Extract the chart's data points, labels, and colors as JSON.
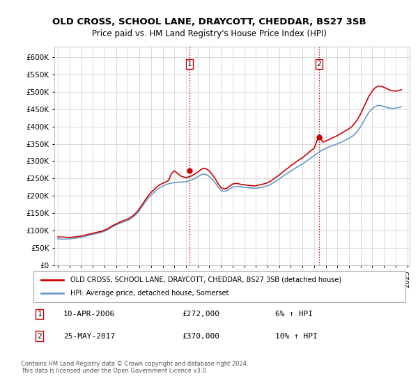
{
  "title": "OLD CROSS, SCHOOL LANE, DRAYCOTT, CHEDDAR, BS27 3SB",
  "subtitle": "Price paid vs. HM Land Registry's House Price Index (HPI)",
  "ylabel_values": [
    "£0",
    "£50K",
    "£100K",
    "£150K",
    "£200K",
    "£250K",
    "£300K",
    "£350K",
    "£400K",
    "£450K",
    "£500K",
    "£550K",
    "£600K"
  ],
  "ylim": [
    0,
    630000
  ],
  "yticks": [
    0,
    50000,
    100000,
    150000,
    200000,
    250000,
    300000,
    350000,
    400000,
    450000,
    500000,
    550000,
    600000
  ],
  "hpi_years": [
    1995.0,
    1995.25,
    1995.5,
    1995.75,
    1996.0,
    1996.25,
    1996.5,
    1996.75,
    1997.0,
    1997.25,
    1997.5,
    1997.75,
    1998.0,
    1998.25,
    1998.5,
    1998.75,
    1999.0,
    1999.25,
    1999.5,
    1999.75,
    2000.0,
    2000.25,
    2000.5,
    2000.75,
    2001.0,
    2001.25,
    2001.5,
    2001.75,
    2002.0,
    2002.25,
    2002.5,
    2002.75,
    2003.0,
    2003.25,
    2003.5,
    2003.75,
    2004.0,
    2004.25,
    2004.5,
    2004.75,
    2005.0,
    2005.25,
    2005.5,
    2005.75,
    2006.0,
    2006.25,
    2006.5,
    2006.75,
    2007.0,
    2007.25,
    2007.5,
    2007.75,
    2008.0,
    2008.25,
    2008.5,
    2008.75,
    2009.0,
    2009.25,
    2009.5,
    2009.75,
    2010.0,
    2010.25,
    2010.5,
    2010.75,
    2011.0,
    2011.25,
    2011.5,
    2011.75,
    2012.0,
    2012.25,
    2012.5,
    2012.75,
    2013.0,
    2013.25,
    2013.5,
    2013.75,
    2014.0,
    2014.25,
    2014.5,
    2014.75,
    2015.0,
    2015.25,
    2015.5,
    2015.75,
    2016.0,
    2016.25,
    2016.5,
    2016.75,
    2017.0,
    2017.25,
    2017.5,
    2017.75,
    2018.0,
    2018.25,
    2018.5,
    2018.75,
    2019.0,
    2019.25,
    2019.5,
    2019.75,
    2020.0,
    2020.25,
    2020.5,
    2020.75,
    2021.0,
    2021.25,
    2021.5,
    2021.75,
    2022.0,
    2022.25,
    2022.5,
    2022.75,
    2023.0,
    2023.25,
    2023.5,
    2023.75,
    2024.0,
    2024.25,
    2024.5
  ],
  "hpi_values": [
    76000,
    75500,
    75000,
    75500,
    76000,
    77000,
    78000,
    79000,
    80000,
    82000,
    85000,
    87000,
    89000,
    91000,
    93000,
    95000,
    98000,
    102000,
    107000,
    112000,
    116000,
    120000,
    123000,
    126000,
    129000,
    134000,
    140000,
    148000,
    158000,
    170000,
    182000,
    193000,
    202000,
    210000,
    218000,
    224000,
    228000,
    232000,
    235000,
    237000,
    238000,
    239000,
    240000,
    240000,
    241000,
    243000,
    246000,
    250000,
    255000,
    260000,
    263000,
    261000,
    256000,
    248000,
    238000,
    226000,
    216000,
    213000,
    215000,
    220000,
    225000,
    227000,
    227000,
    226000,
    225000,
    224000,
    223000,
    222000,
    222000,
    223000,
    225000,
    227000,
    229000,
    233000,
    238000,
    243000,
    249000,
    255000,
    261000,
    266000,
    272000,
    277000,
    282000,
    287000,
    292000,
    298000,
    304000,
    310000,
    316000,
    322000,
    328000,
    333000,
    337000,
    341000,
    344000,
    347000,
    350000,
    354000,
    358000,
    362000,
    366000,
    371000,
    378000,
    388000,
    400000,
    415000,
    430000,
    443000,
    452000,
    458000,
    461000,
    460000,
    458000,
    455000,
    453000,
    452000,
    453000,
    455000,
    457000
  ],
  "red_years": [
    1995.0,
    1995.25,
    1995.5,
    1995.75,
    1996.0,
    1996.25,
    1996.5,
    1996.75,
    1997.0,
    1997.25,
    1997.5,
    1997.75,
    1998.0,
    1998.25,
    1998.5,
    1998.75,
    1999.0,
    1999.25,
    1999.5,
    1999.75,
    2000.0,
    2000.25,
    2000.5,
    2000.75,
    2001.0,
    2001.25,
    2001.5,
    2001.75,
    2002.0,
    2002.25,
    2002.5,
    2002.75,
    2003.0,
    2003.25,
    2003.5,
    2003.75,
    2004.0,
    2004.25,
    2004.5,
    2004.75,
    2005.0,
    2005.25,
    2005.5,
    2005.75,
    2006.0,
    2006.25,
    2006.5,
    2006.75,
    2007.0,
    2007.25,
    2007.5,
    2007.75,
    2008.0,
    2008.25,
    2008.5,
    2008.75,
    2009.0,
    2009.25,
    2009.5,
    2009.75,
    2010.0,
    2010.25,
    2010.5,
    2010.75,
    2011.0,
    2011.25,
    2011.5,
    2011.75,
    2012.0,
    2012.25,
    2012.5,
    2012.75,
    2013.0,
    2013.25,
    2013.5,
    2013.75,
    2014.0,
    2014.25,
    2014.5,
    2014.75,
    2015.0,
    2015.25,
    2015.5,
    2015.75,
    2016.0,
    2016.25,
    2016.5,
    2016.75,
    2017.0,
    2017.25,
    2017.5,
    2017.75,
    2018.0,
    2018.25,
    2018.5,
    2018.75,
    2019.0,
    2019.25,
    2019.5,
    2019.75,
    2020.0,
    2020.25,
    2020.5,
    2020.75,
    2021.0,
    2021.25,
    2021.5,
    2021.75,
    2022.0,
    2022.25,
    2022.5,
    2022.75,
    2023.0,
    2023.25,
    2023.5,
    2023.75,
    2024.0,
    2024.25,
    2024.5
  ],
  "red_values": [
    82000,
    81500,
    81000,
    80500,
    80000,
    81000,
    82000,
    83000,
    84000,
    86000,
    88000,
    90000,
    92000,
    94000,
    96000,
    98000,
    101000,
    105000,
    110000,
    115000,
    119000,
    123000,
    127000,
    130000,
    133000,
    138000,
    144000,
    152000,
    163000,
    175000,
    188000,
    200000,
    210000,
    218000,
    226000,
    232000,
    236000,
    240000,
    244000,
    264000,
    272000,
    266000,
    258000,
    255000,
    252000,
    255000,
    258000,
    263000,
    268000,
    275000,
    280000,
    278000,
    272000,
    262000,
    250000,
    236000,
    224000,
    220000,
    222000,
    228000,
    234000,
    236000,
    235000,
    233000,
    232000,
    231000,
    230000,
    229000,
    229000,
    231000,
    233000,
    235000,
    238000,
    242000,
    248000,
    254000,
    260000,
    267000,
    274000,
    280000,
    287000,
    293000,
    299000,
    305000,
    310000,
    317000,
    324000,
    331000,
    337000,
    360000,
    370000,
    355000,
    358000,
    362000,
    366000,
    370000,
    374000,
    379000,
    384000,
    389000,
    394000,
    400000,
    410000,
    422000,
    437000,
    455000,
    473000,
    490000,
    503000,
    512000,
    517000,
    516000,
    513000,
    509000,
    505000,
    503000,
    502000,
    504000,
    506000
  ],
  "sale1_x": 2006.28,
  "sale1_y": 272000,
  "sale1_label": "1",
  "sale2_x": 2017.42,
  "sale2_y": 370000,
  "sale2_label": "2",
  "vline1_x": 2006.28,
  "vline2_x": 2017.42,
  "legend1_text": "OLD CROSS, SCHOOL LANE, DRAYCOTT, CHEDDAR, BS27 3SB (detached house)",
  "legend2_text": "HPI: Average price, detached house, Somerset",
  "annot1_num": "1",
  "annot1_date": "10-APR-2006",
  "annot1_price": "£272,000",
  "annot1_hpi": "6% ↑ HPI",
  "annot2_num": "2",
  "annot2_date": "25-MAY-2017",
  "annot2_price": "£370,000",
  "annot2_hpi": "10% ↑ HPI",
  "footer": "Contains HM Land Registry data © Crown copyright and database right 2024.\nThis data is licensed under the Open Government Licence v3.0.",
  "red_color": "#cc0000",
  "blue_color": "#6699cc",
  "vline_color": "#cc0000",
  "background_color": "#ffffff",
  "grid_color": "#cccccc",
  "xticks": [
    1995,
    1996,
    1997,
    1998,
    1999,
    2000,
    2001,
    2002,
    2003,
    2004,
    2005,
    2006,
    2007,
    2008,
    2009,
    2010,
    2011,
    2012,
    2013,
    2014,
    2015,
    2016,
    2017,
    2018,
    2019,
    2020,
    2021,
    2022,
    2023,
    2024,
    2025
  ]
}
